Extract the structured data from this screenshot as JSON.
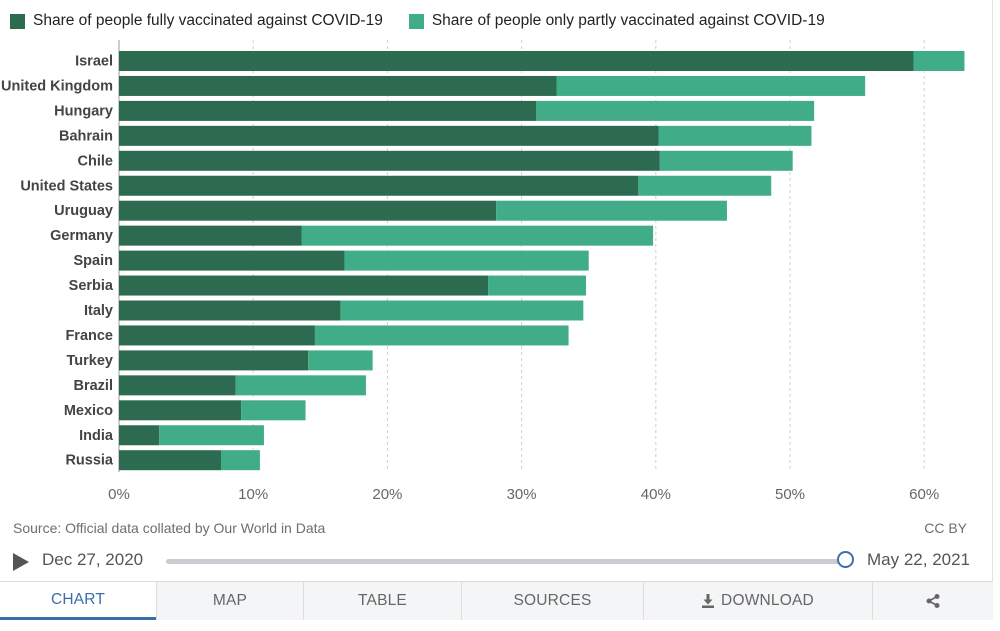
{
  "legend": {
    "full_label": "Share of people fully vaccinated against COVID-19",
    "partial_label": "Share of people only partly vaccinated against COVID-19"
  },
  "colors": {
    "full": "#2d6b51",
    "partial": "#40ac88",
    "grid": "#cfcfcf",
    "accent": "#3b6ea8"
  },
  "chart_data": {
    "type": "bar",
    "orientation": "horizontal",
    "stacked": true,
    "categories": [
      "Israel",
      "United Kingdom",
      "Hungary",
      "Bahrain",
      "Chile",
      "United States",
      "Uruguay",
      "Germany",
      "Spain",
      "Serbia",
      "Italy",
      "France",
      "Turkey",
      "Brazil",
      "Mexico",
      "India",
      "Russia"
    ],
    "series": [
      {
        "name": "Share of people fully vaccinated against COVID-19",
        "values": [
          59.2,
          32.6,
          31.1,
          40.2,
          40.3,
          38.7,
          28.1,
          13.6,
          16.8,
          27.5,
          16.5,
          14.6,
          14.1,
          8.7,
          9.1,
          3.0,
          7.6
        ]
      },
      {
        "name": "Share of people only partly vaccinated against COVID-19",
        "values": [
          3.8,
          23.0,
          20.7,
          11.4,
          9.9,
          9.9,
          17.2,
          26.2,
          18.2,
          7.3,
          18.1,
          18.9,
          4.8,
          9.7,
          4.8,
          7.8,
          2.9
        ]
      }
    ],
    "xlim": [
      0,
      65
    ],
    "xticks": [
      0,
      10,
      20,
      30,
      40,
      50,
      60
    ],
    "xtick_labels": [
      "0%",
      "10%",
      "20%",
      "30%",
      "40%",
      "50%",
      "60%"
    ],
    "grid": true,
    "legend_position": "top-left"
  },
  "footer": {
    "source": "Source: Official data collated by Our World in Data",
    "license": "CC BY"
  },
  "timeline": {
    "start": "Dec 27, 2020",
    "end": "May 22, 2021",
    "position": 1.0
  },
  "tabs": [
    {
      "key": "chart",
      "label": "CHART",
      "icon": ""
    },
    {
      "key": "map",
      "label": "MAP",
      "icon": ""
    },
    {
      "key": "table",
      "label": "TABLE",
      "icon": ""
    },
    {
      "key": "sources",
      "label": "SOURCES",
      "icon": ""
    },
    {
      "key": "download",
      "label": "DOWNLOAD",
      "icon": "download-icon"
    },
    {
      "key": "share",
      "label": "",
      "icon": "share-icon"
    }
  ]
}
